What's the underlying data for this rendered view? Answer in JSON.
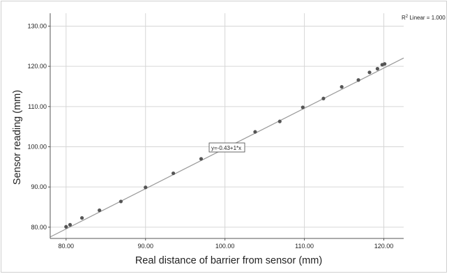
{
  "chart_data": {
    "type": "scatter",
    "title": "",
    "xlabel": "Real distance of barrier from sensor (mm)",
    "ylabel": "Sensor reading (mm)",
    "xlim": [
      78,
      122.5
    ],
    "ylim": [
      77.2,
      133.2
    ],
    "x_ticks": [
      "80.00",
      "90.00",
      "100.00",
      "110.00",
      "120.00"
    ],
    "y_ticks": [
      "80.00",
      "90.00",
      "100.00",
      "110.00",
      "120.00",
      "130.00"
    ],
    "grid": true,
    "legend": "none",
    "points": [
      {
        "x": 80.0,
        "y": 80.1
      },
      {
        "x": 80.5,
        "y": 80.6
      },
      {
        "x": 82.0,
        "y": 82.3
      },
      {
        "x": 84.2,
        "y": 84.2
      },
      {
        "x": 86.9,
        "y": 86.4
      },
      {
        "x": 90.0,
        "y": 89.9
      },
      {
        "x": 93.5,
        "y": 93.4
      },
      {
        "x": 97.0,
        "y": 97.0
      },
      {
        "x": 103.8,
        "y": 103.7
      },
      {
        "x": 106.9,
        "y": 106.3
      },
      {
        "x": 109.8,
        "y": 109.8
      },
      {
        "x": 112.4,
        "y": 112.0
      },
      {
        "x": 114.7,
        "y": 114.9
      },
      {
        "x": 116.8,
        "y": 116.6
      },
      {
        "x": 118.2,
        "y": 118.5
      },
      {
        "x": 119.2,
        "y": 119.4
      },
      {
        "x": 119.8,
        "y": 120.4
      },
      {
        "x": 120.1,
        "y": 120.6
      }
    ],
    "fit_line": {
      "intercept": -0.43,
      "slope": 1
    },
    "fit_label": "y=-0.43+1*x",
    "r2_label_prefix": "R",
    "r2_label_sup": "2",
    "r2_label_suffix": " Linear = 1.000",
    "colors": {
      "point": "#555555",
      "fit_line": "#999999",
      "grid": "#d6d6d6",
      "axis": "#555555",
      "label_box_border": "#444444"
    }
  }
}
